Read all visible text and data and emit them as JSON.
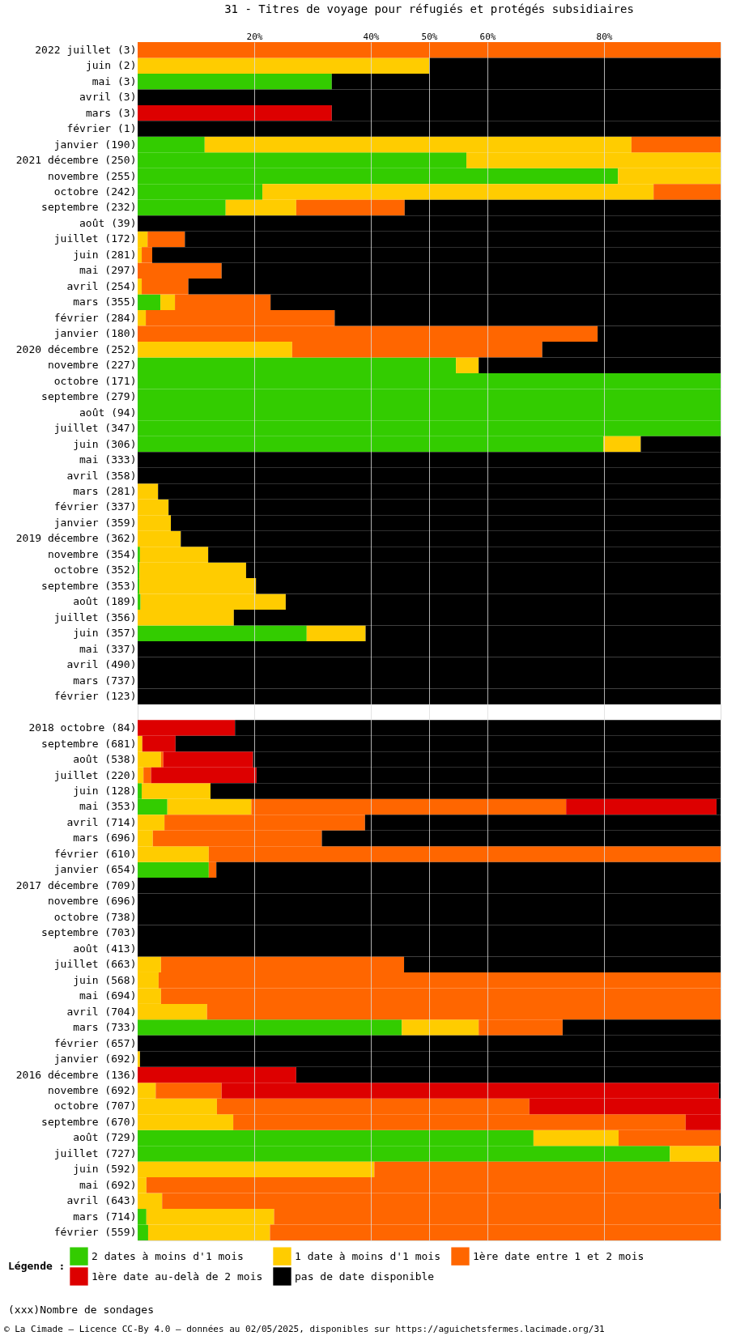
{
  "chart_data": {
    "type": "bar",
    "orientation": "horizontal",
    "stacked": true,
    "title": "31 - Titres de voyage pour réfugiés et protégés subsidiaires",
    "legend_title": "Légende :",
    "annotations": [
      "(xxx)Nombre de sondages",
      "© La Cimade — Licence CC-By 4.0 — données au 02/05/2025, disponibles sur https://aguichetsfermes.lacimade.org/31"
    ],
    "categories": [
      "2022 juillet (3)",
      "juin (2)",
      "mai (3)",
      "avril (3)",
      "mars (3)",
      "février (1)",
      "janvier (190)",
      "2021 décembre (250)",
      "novembre (255)",
      "octobre (242)",
      "septembre (232)",
      "août (39)",
      "juillet (172)",
      "juin (281)",
      "mai (297)",
      "avril (254)",
      "mars (355)",
      "février (284)",
      "janvier (180)",
      "2020 décembre (252)",
      "novembre (227)",
      "octobre (171)",
      "septembre (279)",
      "août (94)",
      "juillet (347)",
      "juin (306)",
      "mai (333)",
      "avril (358)",
      "mars (281)",
      "février (337)",
      "janvier (359)",
      "2019 décembre (362)",
      "novembre (354)",
      "octobre (352)",
      "septembre (353)",
      "août (189)",
      "juillet (356)",
      "juin (357)",
      "mai (337)",
      "avril (490)",
      "mars (737)",
      "février (123)",
      null,
      "2018 octobre (84)",
      "septembre (681)",
      "août (538)",
      "juillet (220)",
      "juin (128)",
      "mai (353)",
      "avril (714)",
      "mars (696)",
      "février (610)",
      "janvier (654)",
      "2017 décembre (709)",
      "novembre (696)",
      "octobre (738)",
      "septembre (703)",
      "août (413)",
      "juillet (663)",
      "juin (568)",
      "mai (694)",
      "avril (704)",
      "mars (733)",
      "février (657)",
      "janvier (692)",
      "2016 décembre (136)",
      "novembre (692)",
      "octobre (707)",
      "septembre (670)",
      "août (729)",
      "juillet (727)",
      "juin (592)",
      "mai (692)",
      "avril (643)",
      "mars (714)",
      "février (559)"
    ],
    "series": [
      {
        "name": "2 dates à moins d'1 mois",
        "color": "#33cc00",
        "values": [
          null,
          null,
          33.3,
          null,
          null,
          null,
          11.5,
          56.4,
          82.4,
          21.4,
          15.1,
          null,
          null,
          null,
          null,
          null,
          3.9,
          null,
          null,
          null,
          54.6,
          100,
          100,
          100,
          100,
          79.9,
          null,
          null,
          null,
          null,
          null,
          null,
          0.4,
          0.3,
          0.3,
          0.5,
          null,
          29,
          null,
          null,
          null,
          null,
          null,
          null,
          null,
          null,
          null,
          0.7,
          5.1,
          null,
          null,
          null,
          12.2,
          null,
          null,
          null,
          null,
          null,
          null,
          null,
          null,
          null,
          45.3,
          null,
          null,
          null,
          null,
          null,
          null,
          67.9,
          91.3,
          null,
          null,
          null,
          1.5,
          1.8
        ]
      },
      {
        "name": "1 date à moins d'1 mois",
        "color": "#ffcc00",
        "values": [
          null,
          50,
          null,
          null,
          null,
          null,
          73.2,
          43.6,
          17.6,
          67.1,
          12.1,
          null,
          1.7,
          0.7,
          null,
          0.7,
          2.5,
          1.4,
          null,
          26.5,
          3.9,
          null,
          null,
          null,
          null,
          6.4,
          null,
          null,
          3.5,
          5.3,
          5.7,
          7.4,
          11.7,
          18.3,
          20,
          24.9,
          16.5,
          10.1,
          null,
          null,
          null,
          null,
          null,
          null,
          0.8,
          4,
          1,
          11.8,
          14.4,
          4.6,
          2.6,
          12.2,
          null,
          null,
          null,
          null,
          null,
          null,
          4,
          3.6,
          4,
          11.9,
          13.2,
          null,
          0.4,
          null,
          3.1,
          13.6,
          16.4,
          14.6,
          8.5,
          40.6,
          1.5,
          4.2,
          21.9,
          20.9
        ]
      },
      {
        "name": "1ère date entre 1 et 2 mois",
        "color": "#ff6600",
        "values": [
          100,
          null,
          null,
          null,
          null,
          null,
          15.3,
          null,
          null,
          11.5,
          18.6,
          null,
          6.4,
          1.8,
          14.4,
          8,
          16.4,
          32.4,
          78.9,
          42.9,
          null,
          null,
          null,
          null,
          null,
          null,
          null,
          null,
          null,
          null,
          null,
          null,
          null,
          null,
          null,
          null,
          null,
          null,
          null,
          null,
          null,
          null,
          null,
          null,
          null,
          0.4,
          1.3,
          null,
          54,
          34.4,
          29,
          87.8,
          1.3,
          null,
          null,
          null,
          null,
          null,
          41.7,
          96.4,
          96,
          88.1,
          14.4,
          null,
          null,
          null,
          11.3,
          53.6,
          77.6,
          17.5,
          null,
          59.4,
          98.5,
          95.6,
          76.6,
          77.3
        ]
      },
      {
        "name": "1ère date au-delà de 2 mois",
        "color": "#dd0000",
        "values": [
          null,
          null,
          null,
          null,
          33.3,
          null,
          null,
          null,
          null,
          null,
          null,
          null,
          null,
          null,
          null,
          null,
          null,
          null,
          null,
          null,
          null,
          null,
          null,
          null,
          null,
          null,
          null,
          null,
          null,
          null,
          null,
          null,
          null,
          null,
          null,
          null,
          null,
          null,
          null,
          null,
          null,
          null,
          null,
          16.7,
          5.7,
          15.4,
          18.1,
          null,
          25.8,
          null,
          null,
          null,
          null,
          null,
          null,
          null,
          null,
          null,
          null,
          null,
          null,
          null,
          null,
          null,
          null,
          27.2,
          85.3,
          32.8,
          6,
          null,
          null,
          null,
          null,
          null,
          null,
          null
        ]
      },
      {
        "name": "pas de date disponible",
        "color": "#000000",
        "values": [
          null,
          50,
          66.7,
          100,
          66.7,
          100,
          null,
          null,
          null,
          null,
          54.2,
          100,
          91.9,
          97.5,
          85.6,
          91.3,
          77.2,
          66.2,
          21.1,
          30.6,
          41.5,
          null,
          null,
          null,
          null,
          13.7,
          100,
          100,
          96.5,
          94.7,
          94.3,
          92.6,
          87.9,
          81.4,
          79.7,
          74.6,
          83.5,
          60.9,
          100,
          100,
          100,
          100,
          null,
          83.3,
          93.5,
          80.2,
          79.6,
          87.5,
          0.7,
          61,
          68.4,
          null,
          86.5,
          100,
          100,
          100,
          100,
          100,
          54.3,
          null,
          null,
          null,
          27.1,
          100,
          99.6,
          72.8,
          0.3,
          null,
          null,
          null,
          0.2,
          null,
          null,
          0.2,
          null,
          null
        ]
      }
    ],
    "xlim": [
      0,
      100
    ],
    "xticks": [
      {
        "value": 20,
        "label": "20%"
      },
      {
        "value": 40,
        "label": "40%"
      },
      {
        "value": 50,
        "label": "50%"
      },
      {
        "value": 60,
        "label": "60%"
      },
      {
        "value": 80,
        "label": "80%"
      }
    ],
    "grid": "x",
    "legend": "bottom"
  }
}
